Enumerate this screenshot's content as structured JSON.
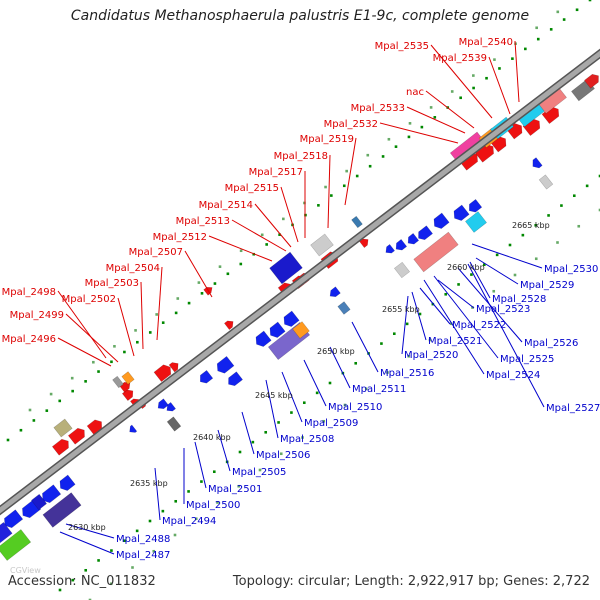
{
  "title": "Candidatus Methanosphaerula palustris E1-9c, complete genome",
  "accession": "Accession: NC_011832",
  "topology": "Topology: circular; Length: 2,922,917 bp; Genes: 2,722",
  "watermark": "CGView",
  "colors": {
    "forward_label": "#dd0000",
    "reverse_label": "#0000cc",
    "forward_gene": "#ee1111",
    "reverse_gene": "#1122ee",
    "backbone": "#888888",
    "tick": "#008800"
  },
  "kbp_ticks": [
    "2630 kbp",
    "2635 kbp",
    "2640 kbp",
    "2645 kbp",
    "2650 kbp",
    "2655 kbp",
    "2660 kbp",
    "2665 kbp"
  ],
  "forward_labels": [
    "Mpal_2496",
    "Mpal_2498",
    "Mpal_2499",
    "Mpal_2502",
    "Mpal_2503",
    "Mpal_2504",
    "Mpal_2507",
    "Mpal_2512",
    "Mpal_2513",
    "Mpal_2514",
    "Mpal_2515",
    "Mpal_2517",
    "Mpal_2518",
    "Mpal_2519",
    "Mpal_2532",
    "Mpal_2533",
    "nac",
    "Mpal_2535",
    "Mpal_2539",
    "Mpal_2540"
  ],
  "reverse_labels": [
    "Mpal_2487",
    "Mpal_2488",
    "Mpal_2494",
    "Mpal_2500",
    "Mpal_2501",
    "Mpal_2505",
    "Mpal_2506",
    "Mpal_2508",
    "Mpal_2509",
    "Mpal_2510",
    "Mpal_2511",
    "Mpal_2516",
    "Mpal_2520",
    "Mpal_2521",
    "Mpal_2522",
    "Mpal_2523",
    "Mpal_2524",
    "Mpal_2525",
    "Mpal_2526",
    "Mpal_2527",
    "Mpal_2528",
    "Mpal_2529",
    "Mpal_2530"
  ]
}
